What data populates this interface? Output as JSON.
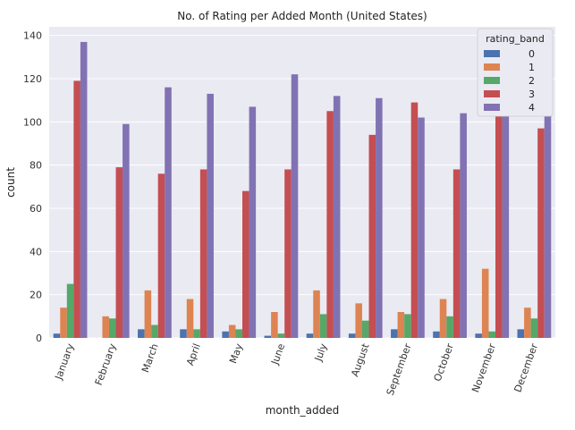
{
  "chart_data": {
    "type": "bar",
    "title": "No. of Rating per Added Month (United States)",
    "xlabel": "month_added",
    "ylabel": "count",
    "ylim": [
      0,
      144
    ],
    "yticks": [
      0,
      20,
      40,
      60,
      80,
      100,
      120,
      140
    ],
    "grid": true,
    "legend_title": "rating_band",
    "legend_position": "top-right",
    "categories": [
      "January",
      "February",
      "March",
      "April",
      "May",
      "June",
      "July",
      "August",
      "September",
      "October",
      "November",
      "December"
    ],
    "series": [
      {
        "name": "0",
        "color": "#4c72b0",
        "values": [
          2,
          0,
          4,
          4,
          3,
          1,
          2,
          2,
          4,
          3,
          2,
          4
        ]
      },
      {
        "name": "1",
        "color": "#dd8452",
        "values": [
          14,
          10,
          22,
          18,
          6,
          12,
          22,
          16,
          12,
          18,
          32,
          14
        ]
      },
      {
        "name": "2",
        "color": "#55a868",
        "values": [
          25,
          9,
          6,
          4,
          4,
          2,
          11,
          8,
          11,
          10,
          3,
          9
        ]
      },
      {
        "name": "3",
        "color": "#c44e52",
        "values": [
          119,
          79,
          76,
          78,
          68,
          78,
          105,
          94,
          109,
          78,
          105,
          97
        ]
      },
      {
        "name": "4",
        "color": "#8172b3",
        "values": [
          137,
          99,
          116,
          113,
          107,
          122,
          112,
          111,
          102,
          104,
          116,
          112
        ]
      }
    ]
  },
  "colors": {
    "plot_background": "#eaeaf2",
    "grid": "#ffffff"
  }
}
